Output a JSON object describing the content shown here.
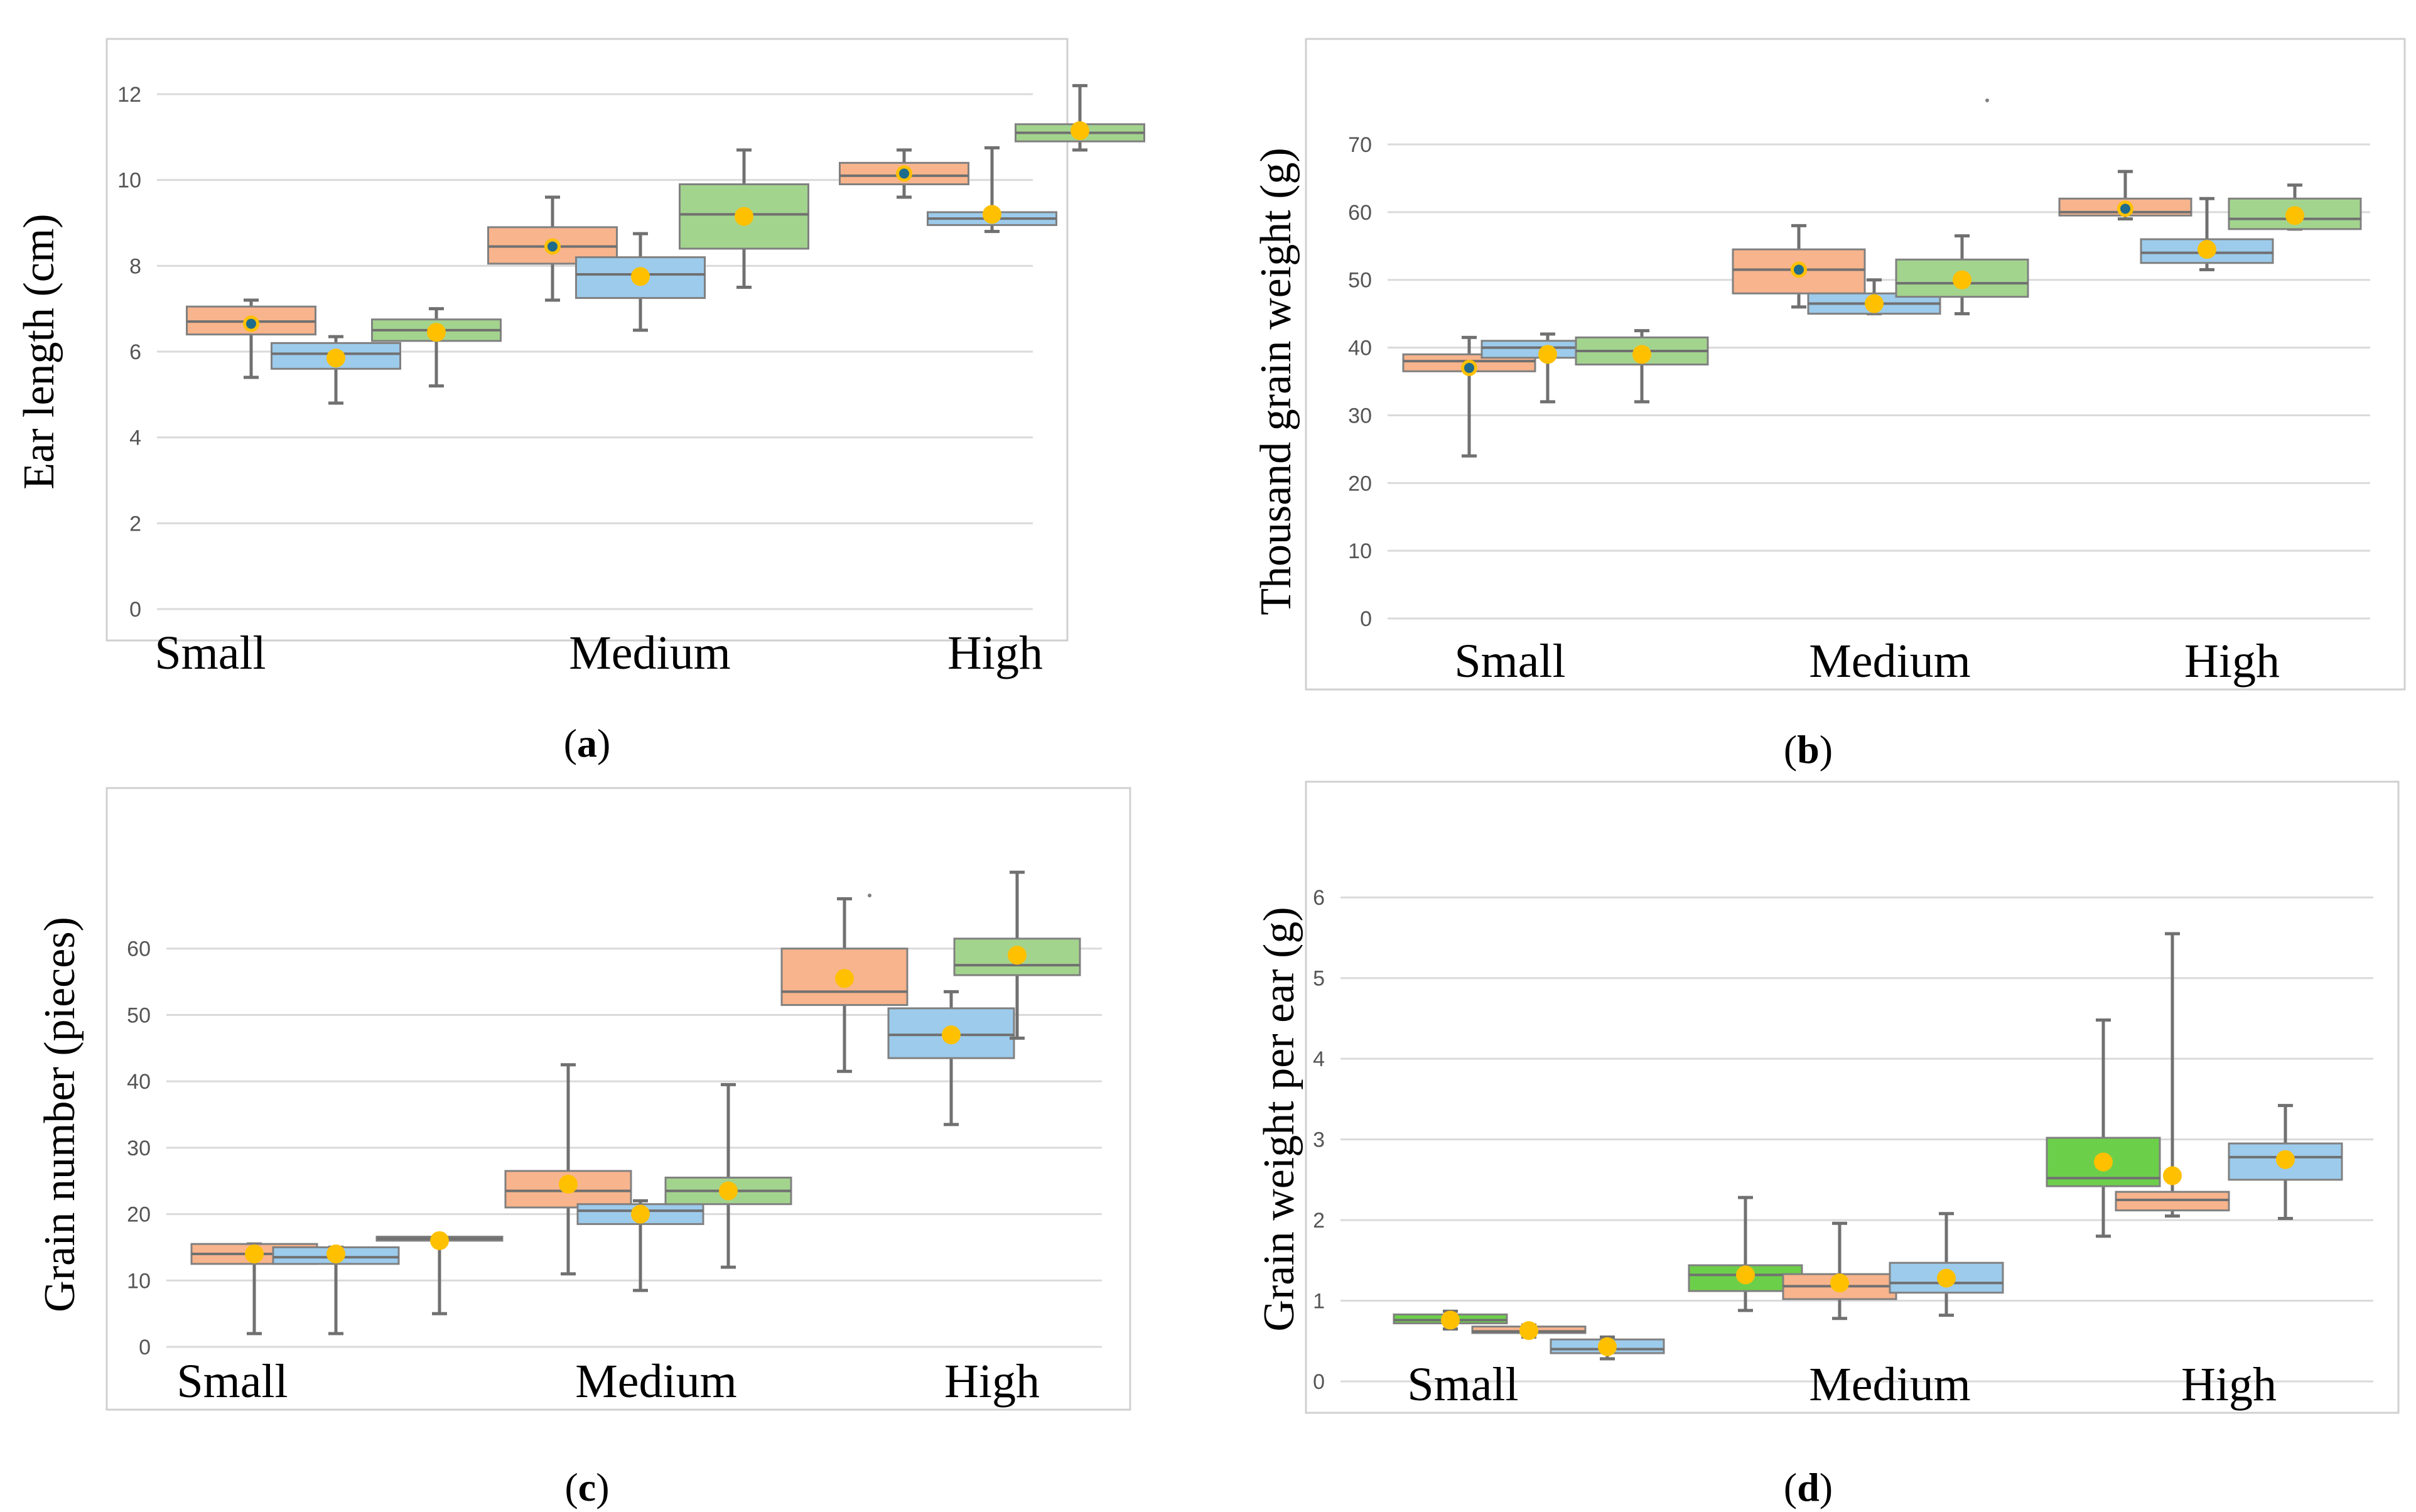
{
  "figure": {
    "caption_open": "(",
    "caption_close": ")"
  },
  "colors": {
    "orange": "#F8B48C",
    "blue": "#9CCBEC",
    "green": "#A3D48E",
    "bright_green": "#6CCF4A",
    "grid": "#DADADA",
    "whisker": "#707070",
    "mean": "#FFC000",
    "mean_center": "#1F6B8C"
  },
  "chart_data": [
    {
      "id": "a",
      "type": "box",
      "caption": "a",
      "ylabel": "Ear length (cm)",
      "ylim": [
        0,
        12
      ],
      "yticks": [
        0,
        2,
        4,
        6,
        8,
        10,
        12
      ],
      "categories": [
        "Small",
        "Medium",
        "High"
      ],
      "boxes": [
        {
          "category": "Small",
          "color": "orange",
          "min": 5.4,
          "q1": 6.4,
          "median": 6.7,
          "q3": 7.05,
          "max": 7.2,
          "mean": 6.65,
          "mean_style": "center"
        },
        {
          "category": "Small",
          "color": "blue",
          "min": 4.8,
          "q1": 5.6,
          "median": 5.95,
          "q3": 6.2,
          "max": 6.35,
          "mean": 5.85,
          "mean_style": "yellow"
        },
        {
          "category": "Small",
          "color": "green",
          "min": 5.2,
          "q1": 6.25,
          "median": 6.5,
          "q3": 6.75,
          "max": 7.0,
          "mean": 6.45,
          "mean_style": "yellow"
        },
        {
          "category": "Medium",
          "color": "orange",
          "min": 7.2,
          "q1": 8.05,
          "median": 8.45,
          "q3": 8.9,
          "max": 9.6,
          "mean": 8.45,
          "mean_style": "center"
        },
        {
          "category": "Medium",
          "color": "blue",
          "min": 6.5,
          "q1": 7.25,
          "median": 7.8,
          "q3": 8.2,
          "max": 8.75,
          "mean": 7.75,
          "mean_style": "yellow"
        },
        {
          "category": "Medium",
          "color": "green",
          "min": 7.5,
          "q1": 8.4,
          "median": 9.2,
          "q3": 9.9,
          "max": 10.7,
          "mean": 9.15,
          "mean_style": "yellow"
        },
        {
          "category": "High",
          "color": "orange",
          "min": 9.6,
          "q1": 9.9,
          "median": 10.1,
          "q3": 10.4,
          "max": 10.7,
          "mean": 10.15,
          "mean_style": "center"
        },
        {
          "category": "High",
          "color": "blue",
          "min": 8.8,
          "q1": 8.95,
          "median": 9.1,
          "q3": 9.25,
          "max": 10.75,
          "mean": 9.2,
          "mean_style": "yellow"
        },
        {
          "category": "High",
          "color": "green",
          "min": 10.7,
          "q1": 10.9,
          "median": 11.1,
          "q3": 11.3,
          "max": 12.2,
          "mean": 11.15,
          "mean_style": "yellow"
        }
      ]
    },
    {
      "id": "b",
      "type": "box",
      "caption": "b",
      "ylabel": "Thousand grain weight (g)",
      "ylim": [
        0,
        70
      ],
      "yticks": [
        0,
        10,
        20,
        30,
        40,
        50,
        60,
        70
      ],
      "categories": [
        "Small",
        "Medium",
        "High"
      ],
      "boxes": [
        {
          "category": "Small",
          "color": "orange",
          "min": 24,
          "q1": 36.5,
          "median": 38,
          "q3": 39,
          "max": 41.5,
          "mean": 37,
          "mean_style": "center"
        },
        {
          "category": "Small",
          "color": "blue",
          "min": 32,
          "q1": 38.5,
          "median": 40,
          "q3": 41,
          "max": 42,
          "mean": 39,
          "mean_style": "yellow"
        },
        {
          "category": "Small",
          "color": "green",
          "min": 32,
          "q1": 37.5,
          "median": 39.5,
          "q3": 41.5,
          "max": 42.5,
          "mean": 39,
          "mean_style": "yellow"
        },
        {
          "category": "Medium",
          "color": "orange",
          "min": 46,
          "q1": 48,
          "median": 51.5,
          "q3": 54.5,
          "max": 58,
          "mean": 51.5,
          "mean_style": "center"
        },
        {
          "category": "Medium",
          "color": "blue",
          "min": 45,
          "q1": 45,
          "median": 46.5,
          "q3": 48,
          "max": 50,
          "mean": 46.5,
          "mean_style": "yellow"
        },
        {
          "category": "Medium",
          "color": "green",
          "min": 45,
          "q1": 47.5,
          "median": 49.5,
          "q3": 53,
          "max": 56.5,
          "mean": 50,
          "mean_style": "yellow"
        },
        {
          "category": "High",
          "color": "orange",
          "min": 59,
          "q1": 59.5,
          "median": 60,
          "q3": 62,
          "max": 66,
          "mean": 60.5,
          "mean_style": "center"
        },
        {
          "category": "High",
          "color": "blue",
          "min": 51.5,
          "q1": 52.5,
          "median": 54,
          "q3": 56,
          "max": 62,
          "mean": 54.5,
          "mean_style": "yellow"
        },
        {
          "category": "High",
          "color": "green",
          "min": 57.5,
          "q1": 57.5,
          "median": 59,
          "q3": 62,
          "max": 64,
          "mean": 59.5,
          "mean_style": "yellow"
        }
      ],
      "outliers": [
        {
          "category": "Medium",
          "box": 5,
          "value": 76.5
        }
      ]
    },
    {
      "id": "c",
      "type": "box",
      "caption": "c",
      "ylabel": "Grain number (pieces)",
      "ylim": [
        0,
        70
      ],
      "yticks": [
        0,
        10,
        20,
        30,
        40,
        50,
        60
      ],
      "categories": [
        "Small",
        "Medium",
        "High"
      ],
      "boxes": [
        {
          "category": "Small",
          "color": "orange",
          "min": 2,
          "q1": 12.5,
          "median": 14,
          "q3": 15.5,
          "max": 15.5,
          "mean": 14,
          "mean_style": "yellow"
        },
        {
          "category": "Small",
          "color": "blue",
          "min": 2,
          "q1": 12.5,
          "median": 13.5,
          "q3": 15,
          "max": 15,
          "mean": 14,
          "mean_style": "yellow"
        },
        {
          "category": "Small",
          "color": "green",
          "min": 5,
          "q1": 16,
          "median": 16.3,
          "q3": 16.6,
          "max": 16.6,
          "mean": 16,
          "mean_style": "yellow"
        },
        {
          "category": "Medium",
          "color": "orange",
          "min": 11,
          "q1": 21,
          "median": 23.5,
          "q3": 26.5,
          "max": 42.5,
          "mean": 24.5,
          "mean_style": "yellow"
        },
        {
          "category": "Medium",
          "color": "blue",
          "min": 8.5,
          "q1": 18.5,
          "median": 20.5,
          "q3": 21.5,
          "max": 22,
          "mean": 20,
          "mean_style": "yellow"
        },
        {
          "category": "Medium",
          "color": "green",
          "min": 12,
          "q1": 21.5,
          "median": 23.5,
          "q3": 25.5,
          "max": 39.5,
          "mean": 23.5,
          "mean_style": "yellow"
        },
        {
          "category": "High",
          "color": "orange",
          "min": 41.5,
          "q1": 51.5,
          "median": 53.5,
          "q3": 60,
          "max": 67.5,
          "mean": 55.5,
          "mean_style": "yellow"
        },
        {
          "category": "High",
          "color": "blue",
          "min": 33.5,
          "q1": 43.5,
          "median": 47,
          "q3": 51,
          "max": 53.5,
          "mean": 47,
          "mean_style": "yellow"
        },
        {
          "category": "High",
          "color": "green",
          "min": 46.5,
          "q1": 56,
          "median": 57.5,
          "q3": 61.5,
          "max": 71.5,
          "mean": 59,
          "mean_style": "yellow"
        }
      ],
      "outliers": [
        {
          "category": "High",
          "box": 6,
          "value": 68
        }
      ]
    },
    {
      "id": "d",
      "type": "box",
      "caption": "d",
      "ylabel": "Grain weight per ear (g)",
      "ylim": [
        0,
        6.5
      ],
      "yticks": [
        0,
        1,
        2,
        3,
        4,
        5,
        6
      ],
      "categories": [
        "Small",
        "Medium",
        "High"
      ],
      "boxes": [
        {
          "category": "Small",
          "color": "bright_green",
          "min": 0.65,
          "q1": 0.72,
          "median": 0.76,
          "q3": 0.83,
          "max": 0.87,
          "mean": 0.76,
          "mean_style": "yellow"
        },
        {
          "category": "Small",
          "color": "orange",
          "min": 0.55,
          "q1": 0.6,
          "median": 0.62,
          "q3": 0.68,
          "max": 0.7,
          "mean": 0.63,
          "mean_style": "yellow"
        },
        {
          "category": "Small",
          "color": "blue",
          "min": 0.28,
          "q1": 0.35,
          "median": 0.4,
          "q3": 0.52,
          "max": 0.55,
          "mean": 0.43,
          "mean_style": "yellow"
        },
        {
          "category": "Medium",
          "color": "bright_green",
          "min": 0.88,
          "q1": 1.12,
          "median": 1.32,
          "q3": 1.44,
          "max": 2.28,
          "mean": 1.32,
          "mean_style": "yellow"
        },
        {
          "category": "Medium",
          "color": "orange",
          "min": 0.78,
          "q1": 1.02,
          "median": 1.18,
          "q3": 1.33,
          "max": 1.96,
          "mean": 1.22,
          "mean_style": "yellow"
        },
        {
          "category": "Medium",
          "color": "blue",
          "min": 0.82,
          "q1": 1.1,
          "median": 1.22,
          "q3": 1.47,
          "max": 2.08,
          "mean": 1.28,
          "mean_style": "yellow"
        },
        {
          "category": "High",
          "color": "bright_green",
          "min": 1.8,
          "q1": 2.42,
          "median": 2.52,
          "q3": 3.02,
          "max": 4.48,
          "mean": 2.72,
          "mean_style": "yellow"
        },
        {
          "category": "High",
          "color": "orange",
          "min": 2.05,
          "q1": 2.12,
          "median": 2.25,
          "q3": 2.35,
          "max": 5.55,
          "mean": 2.55,
          "mean_style": "yellow"
        },
        {
          "category": "High",
          "color": "blue",
          "min": 2.02,
          "q1": 2.5,
          "median": 2.78,
          "q3": 2.95,
          "max": 3.42,
          "mean": 2.75,
          "mean_style": "yellow"
        }
      ]
    }
  ]
}
